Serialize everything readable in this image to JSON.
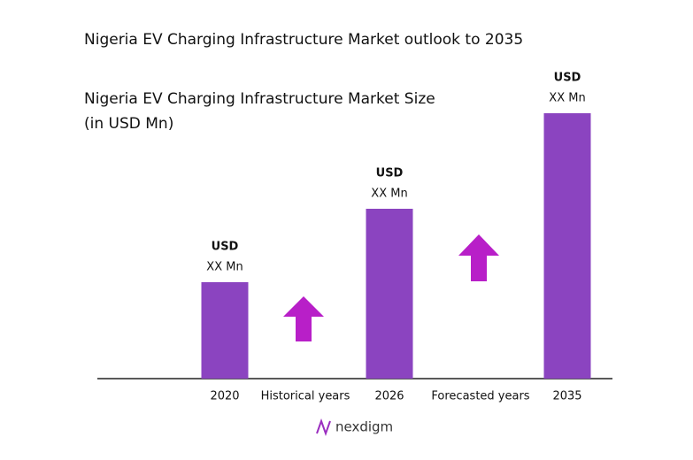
{
  "chart_data": {
    "type": "bar",
    "title": "Nigeria EV Charging Infrastructure Market outlook to 2035",
    "subtitle": [
      "Nigeria EV Charging Infrastructure Market Size",
      "(in USD Mn)"
    ],
    "categories": [
      "2020",
      "2026",
      "2035"
    ],
    "values": [
      109,
      192,
      300
    ],
    "bar_labels": [
      [
        "USD",
        "XX Mn"
      ],
      [
        "USD",
        "XX Mn"
      ],
      [
        "USD",
        "XX Mn"
      ]
    ],
    "periods": [
      "Historical years",
      "Forecasted years"
    ],
    "color": "#8b44c0",
    "ylim": [
      0,
      300
    ],
    "logo": "nexdigm"
  }
}
